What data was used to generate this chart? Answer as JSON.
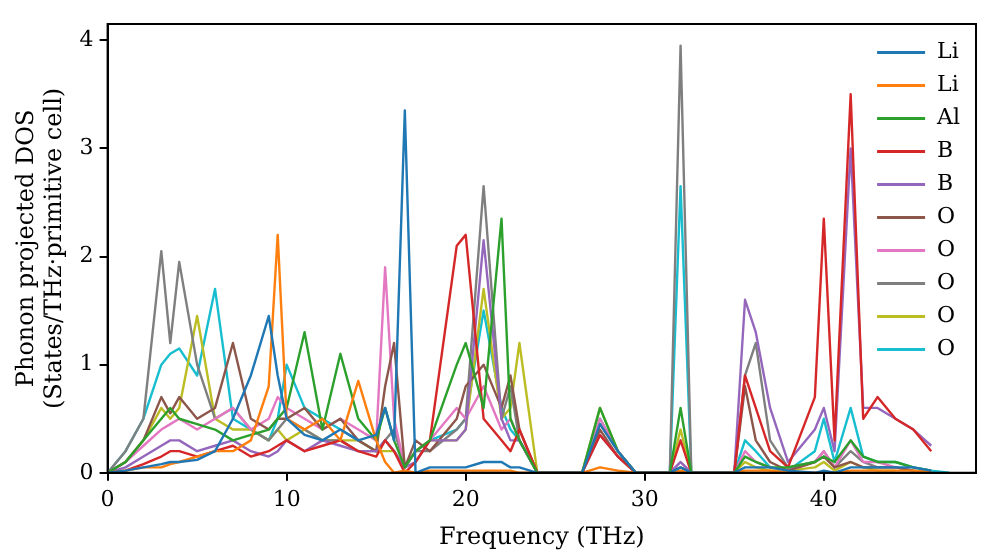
{
  "chart_data": {
    "type": "line",
    "xlabel": "Frequency (THz)",
    "ylabel": "Phonon projected DOS\n(States/THz·primitive cell)",
    "x": [
      0,
      1,
      2,
      3,
      3.5,
      4,
      5,
      6,
      7,
      8,
      9,
      9.5,
      10,
      11,
      12,
      13,
      14,
      15,
      15.5,
      16,
      16.6,
      17.2,
      18,
      19.5,
      20,
      21,
      22,
      22.5,
      23,
      24,
      26.5,
      27.5,
      28.5,
      29.5,
      31.4,
      32,
      32.6,
      35,
      35.6,
      36.2,
      37,
      38,
      39.5,
      40,
      40.6,
      41.5,
      42.2,
      43,
      44,
      45,
      46,
      47
    ],
    "xlim": [
      0,
      48.5
    ],
    "xticks": [
      0,
      10,
      20,
      30,
      40
    ],
    "ylim": [
      0,
      4.15
    ],
    "yticks": [
      0,
      1,
      2,
      3,
      4
    ],
    "grid": false,
    "legend": "top right",
    "marker": "none",
    "series": [
      {
        "name": "Li",
        "color": "#1f77b4",
        "values": [
          0,
          0.02,
          0.05,
          0.08,
          0.1,
          0.1,
          0.12,
          0.2,
          0.5,
          0.9,
          1.45,
          0.9,
          0.5,
          0.35,
          0.3,
          0.4,
          0.3,
          0.35,
          0.6,
          0.3,
          3.35,
          0,
          0.05,
          0.05,
          0.05,
          0.1,
          0.1,
          0.05,
          0.05,
          0,
          0,
          0.45,
          0.2,
          0,
          0,
          0.05,
          0,
          0,
          0.05,
          0.05,
          0.05,
          0.02,
          0,
          0.02,
          0,
          0.05,
          0.05,
          0.05,
          0.05,
          0.05,
          0.02,
          null
        ]
      },
      {
        "name": "Li",
        "color": "#ff7f0e",
        "values": [
          0,
          0.02,
          0.05,
          0.05,
          0.08,
          0.1,
          0.15,
          0.2,
          0.2,
          0.3,
          0.8,
          2.2,
          0.5,
          0.4,
          0.5,
          0.3,
          0.85,
          0.3,
          0.1,
          0,
          0.02,
          0,
          0.02,
          0.02,
          0.02,
          0.02,
          0.02,
          0.02,
          0,
          0,
          0,
          0.05,
          0.02,
          0,
          0,
          0.02,
          0,
          0,
          0.02,
          0.02,
          0.02,
          0,
          0,
          0,
          0,
          0.02,
          0.02,
          0.02,
          0.02,
          0.02,
          0,
          null
        ]
      },
      {
        "name": "Al",
        "color": "#2ca02c",
        "values": [
          0,
          0.1,
          0.3,
          0.5,
          0.6,
          0.5,
          0.45,
          0.4,
          0.3,
          0.35,
          0.4,
          0.5,
          0.6,
          1.3,
          0.4,
          1.1,
          0.5,
          0.3,
          0.6,
          0.3,
          0.05,
          0.2,
          0.3,
          1.0,
          1.2,
          0.6,
          2.35,
          0.5,
          0.3,
          0,
          0,
          0.6,
          0.2,
          0,
          0,
          0.6,
          0,
          0,
          0.15,
          0.1,
          0.05,
          0.05,
          0.1,
          0.15,
          0.1,
          0.3,
          0.15,
          0.1,
          0.1,
          0.05,
          0.02,
          null
        ]
      },
      {
        "name": "B",
        "color": "#d62728",
        "values": [
          0,
          0.02,
          0.08,
          0.15,
          0.2,
          0.2,
          0.15,
          0.2,
          0.25,
          0.15,
          0.2,
          0.25,
          0.3,
          0.2,
          0.25,
          0.3,
          0.2,
          0.15,
          0.3,
          0.2,
          0,
          0.1,
          0.3,
          2.1,
          2.2,
          0.5,
          0.3,
          0.2,
          0.4,
          0,
          0,
          0.35,
          0.15,
          0,
          0,
          0.3,
          0,
          0,
          0.9,
          0.6,
          0.2,
          0.05,
          0.7,
          2.35,
          0.3,
          3.5,
          0.5,
          0.7,
          0.5,
          0.4,
          0.2,
          null
        ]
      },
      {
        "name": "B",
        "color": "#9467bd",
        "values": [
          0,
          0.05,
          0.15,
          0.25,
          0.3,
          0.3,
          0.2,
          0.25,
          0.3,
          0.2,
          0.15,
          0.2,
          0.3,
          0.2,
          0.3,
          0.25,
          0.2,
          0.2,
          0.3,
          0.2,
          0.05,
          0.1,
          0.3,
          0.3,
          0.4,
          2.15,
          0.5,
          0.3,
          0.3,
          0,
          0,
          0.35,
          0.15,
          0,
          0,
          0.1,
          0,
          0,
          1.6,
          1.3,
          0.6,
          0.1,
          0.4,
          0.6,
          0.2,
          3.0,
          0.6,
          0.6,
          0.5,
          0.4,
          0.25,
          null
        ]
      },
      {
        "name": "O",
        "color": "#8c564b",
        "values": [
          0,
          0.1,
          0.3,
          0.7,
          0.55,
          0.7,
          0.5,
          0.6,
          1.2,
          0.5,
          0.4,
          0.5,
          0.5,
          0.6,
          0.4,
          0.5,
          0.3,
          0.2,
          0.8,
          1.2,
          0.05,
          0.3,
          0.2,
          0.5,
          0.8,
          1.0,
          0.6,
          0.9,
          0.4,
          0,
          0,
          0.4,
          0.15,
          0,
          0,
          0.05,
          0,
          0,
          0.8,
          0.3,
          0.1,
          0.02,
          0.1,
          0.15,
          0.05,
          0.1,
          0.05,
          0.05,
          0.05,
          0.02,
          0,
          null
        ]
      },
      {
        "name": "O",
        "color": "#e377c2",
        "values": [
          0,
          0.1,
          0.25,
          0.4,
          0.45,
          0.5,
          0.4,
          0.5,
          0.6,
          0.4,
          0.5,
          0.7,
          0.6,
          0.5,
          0.4,
          0.5,
          0.4,
          0.3,
          1.9,
          0.5,
          0.05,
          0.2,
          0.3,
          0.6,
          0.5,
          0.8,
          0.4,
          0.5,
          0.3,
          0,
          0,
          0.5,
          0.2,
          0,
          0,
          0.1,
          0,
          0,
          0.2,
          0.1,
          0.05,
          0.02,
          0.1,
          0.2,
          0.05,
          0.3,
          0.1,
          0.1,
          0.05,
          0.02,
          0,
          null
        ]
      },
      {
        "name": "O",
        "color": "#7f7f7f",
        "values": [
          0,
          0.2,
          0.5,
          2.05,
          1.2,
          1.95,
          1.0,
          0.5,
          0.6,
          0.4,
          0.3,
          0.4,
          0.5,
          0.4,
          0.3,
          0.3,
          0.2,
          0.2,
          0.3,
          0.4,
          0.05,
          0.2,
          0.2,
          0.4,
          0.5,
          2.65,
          0.5,
          0.8,
          0.3,
          0,
          0,
          0.45,
          0.2,
          0,
          0,
          3.95,
          0,
          0,
          0.9,
          1.2,
          0.3,
          0.05,
          0.1,
          0.2,
          0.05,
          0.2,
          0.1,
          0.05,
          0.05,
          0.02,
          0,
          null
        ]
      },
      {
        "name": "O",
        "color": "#bcbd22",
        "values": [
          0,
          0.1,
          0.3,
          0.6,
          0.5,
          0.6,
          1.45,
          0.5,
          0.4,
          0.4,
          0.3,
          0.4,
          0.3,
          0.4,
          0.3,
          0.3,
          0.3,
          0.2,
          0.2,
          0.2,
          0.05,
          0.2,
          0.3,
          0.3,
          0.4,
          1.7,
          0.5,
          0.6,
          1.2,
          0,
          0,
          0.6,
          0.2,
          0,
          0,
          0.4,
          0,
          0,
          0.1,
          0.05,
          0.02,
          0.02,
          0.05,
          0.1,
          0.02,
          0.1,
          0.05,
          0.02,
          0.02,
          null,
          null,
          null
        ]
      },
      {
        "name": "O",
        "color": "#17becf",
        "values": [
          0,
          0.2,
          0.5,
          1.0,
          1.1,
          1.15,
          0.9,
          1.7,
          0.5,
          0.4,
          0.3,
          0.5,
          1.0,
          0.6,
          0.5,
          0.4,
          0.3,
          0.2,
          0.3,
          0.2,
          0.05,
          0.2,
          0.3,
          0.4,
          0.5,
          1.5,
          0.6,
          0.4,
          0.3,
          0,
          0,
          0.5,
          0.2,
          0,
          0,
          2.65,
          0,
          0,
          0.3,
          0.2,
          0.05,
          0.02,
          0.2,
          0.5,
          0.1,
          0.6,
          0.15,
          0.1,
          0.1,
          0.05,
          0.02,
          0
        ]
      }
    ]
  }
}
